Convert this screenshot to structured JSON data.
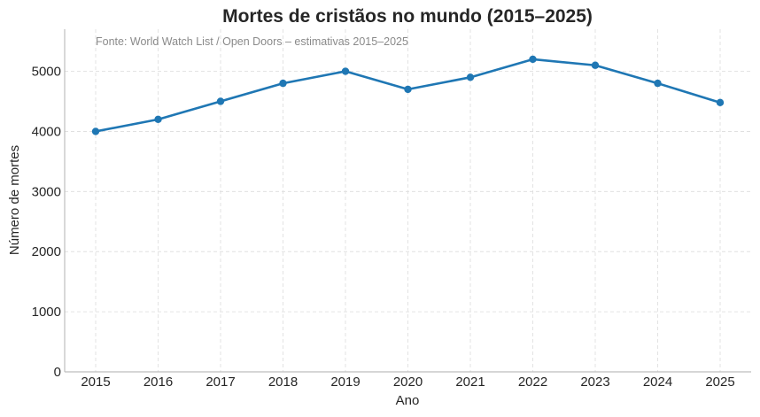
{
  "chart_data": {
    "type": "line",
    "title": "Mortes de cristãos no mundo (2015–2025)",
    "annotation": "Fonte: World Watch List / Open Doors – estimativas 2015–2025",
    "xlabel": "Ano",
    "ylabel": "Número de mortes",
    "x": [
      "2015",
      "2016",
      "2017",
      "2018",
      "2019",
      "2020",
      "2021",
      "2022",
      "2023",
      "2024",
      "2025"
    ],
    "series": [
      {
        "values": [
          4000,
          4200,
          4500,
          4800,
          5000,
          4700,
          4900,
          5200,
          5100,
          4800,
          4480
        ]
      }
    ],
    "ylim": [
      0,
      5700
    ],
    "yticks": [
      0,
      1000,
      2000,
      3000,
      4000,
      5000
    ],
    "grid": true,
    "color": "#1f77b4"
  }
}
